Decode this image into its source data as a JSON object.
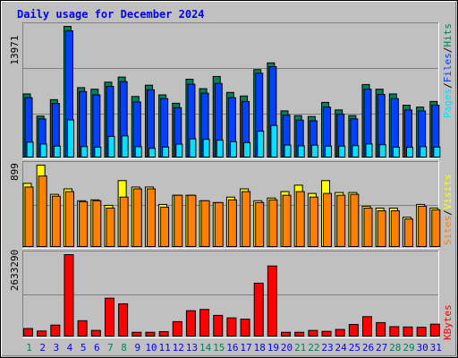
{
  "title": "Daily usage for December 2024",
  "colors": {
    "background": "#c0c0c0",
    "title": "#0000ff",
    "hits": "#00805c",
    "files": "#0040ff",
    "pages": "#00e0ff",
    "visits": "#ffff00",
    "sites": "#ff8000",
    "kbytes": "#ff0000",
    "weekend_label": "#00805c",
    "weekday_label": "#0000ff"
  },
  "chart_data": [
    {
      "type": "bar",
      "name": "hits-files-pages",
      "max_label": "13971",
      "legend": [
        "Pages",
        "/",
        "Files",
        "/",
        "Hits"
      ],
      "categories": [
        "1",
        "2",
        "3",
        "4",
        "5",
        "6",
        "7",
        "8",
        "9",
        "10",
        "11",
        "12",
        "13",
        "14",
        "15",
        "16",
        "17",
        "18",
        "19",
        "20",
        "21",
        "22",
        "23",
        "24",
        "25",
        "26",
        "27",
        "28",
        "29",
        "30",
        "31"
      ],
      "ylim": [
        0,
        13971
      ],
      "series": [
        {
          "name": "Hits",
          "values": [
            6800,
            4450,
            6190,
            13971,
            7470,
            7300,
            8050,
            8590,
            6530,
            7730,
            6700,
            5810,
            8360,
            7360,
            8650,
            6960,
            6580,
            9380,
            10100,
            5000,
            4500,
            4400,
            5900,
            5100,
            4500,
            7800,
            7300,
            6800,
            5600,
            5400,
            6000
          ]
        },
        {
          "name": "Files",
          "values": [
            6400,
            4150,
            5790,
            13500,
            7050,
            6700,
            7600,
            8100,
            5950,
            7240,
            6300,
            5340,
            7830,
            6880,
            7910,
            6400,
            6000,
            9000,
            9690,
            4550,
            4020,
            3950,
            5400,
            4650,
            4150,
            7300,
            6750,
            6300,
            5100,
            5000,
            5600
          ]
        },
        {
          "name": "Pages",
          "values": [
            1680,
            1480,
            1260,
            4040,
            1210,
            1150,
            2290,
            2340,
            1200,
            1020,
            1160,
            1470,
            2030,
            1980,
            1890,
            1720,
            1630,
            2840,
            3450,
            1370,
            1280,
            1360,
            1260,
            1260,
            1310,
            1490,
            1410,
            1150,
            1130,
            1200,
            1160
          ]
        }
      ]
    },
    {
      "type": "bar",
      "name": "visits-sites",
      "max_label": "899",
      "legend": [
        "Sites",
        "/",
        "Visits"
      ],
      "categories": [
        "1",
        "2",
        "3",
        "4",
        "5",
        "6",
        "7",
        "8",
        "9",
        "10",
        "11",
        "12",
        "13",
        "14",
        "15",
        "16",
        "17",
        "18",
        "19",
        "20",
        "21",
        "22",
        "23",
        "24",
        "25",
        "26",
        "27",
        "28",
        "29",
        "30",
        "31"
      ],
      "ylim": [
        0,
        899
      ],
      "series": [
        {
          "name": "Visits",
          "values": [
            700,
            899,
            580,
            640,
            510,
            520,
            460,
            730,
            660,
            660,
            470,
            570,
            570,
            510,
            490,
            550,
            640,
            510,
            540,
            610,
            680,
            590,
            730,
            600,
            600,
            450,
            430,
            430,
            330,
            470,
            430
          ]
        },
        {
          "name": "Sites",
          "values": [
            660,
            780,
            560,
            610,
            500,
            510,
            430,
            550,
            640,
            640,
            440,
            570,
            570,
            510,
            490,
            520,
            610,
            490,
            520,
            570,
            610,
            550,
            590,
            570,
            580,
            430,
            400,
            400,
            310,
            450,
            410
          ]
        }
      ]
    },
    {
      "type": "bar",
      "name": "kbytes",
      "max_label": "2633290",
      "legend": [
        "KBytes"
      ],
      "categories": [
        "1",
        "2",
        "3",
        "4",
        "5",
        "6",
        "7",
        "8",
        "9",
        "10",
        "11",
        "12",
        "13",
        "14",
        "15",
        "16",
        "17",
        "18",
        "19",
        "20",
        "21",
        "22",
        "23",
        "24",
        "25",
        "26",
        "27",
        "28",
        "29",
        "30",
        "31"
      ],
      "ylim": [
        0,
        2633290
      ],
      "series": [
        {
          "name": "KBytes",
          "values": [
            270000,
            190000,
            380000,
            2633290,
            520000,
            210000,
            1240000,
            1060000,
            150000,
            150000,
            170000,
            490000,
            840000,
            880000,
            690000,
            610000,
            570000,
            1720000,
            2270000,
            150000,
            150000,
            210000,
            180000,
            240000,
            400000,
            650000,
            460000,
            330000,
            320000,
            310000,
            410000
          ]
        }
      ]
    }
  ]
}
